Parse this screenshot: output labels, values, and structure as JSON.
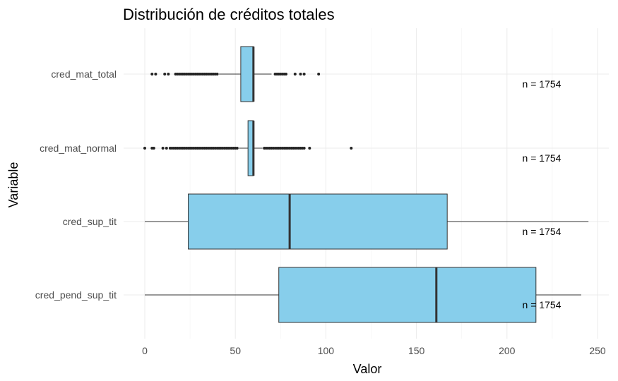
{
  "chart_data": {
    "type": "boxplot",
    "orientation": "horizontal",
    "title": "Distribución de créditos totales",
    "xlabel": "Valor",
    "ylabel": "Variable",
    "xlim": [
      -5,
      253
    ],
    "xticks": [
      0,
      50,
      100,
      150,
      200,
      250
    ],
    "grid": true,
    "legend": "none",
    "box_color": "#87CEEB",
    "series": [
      {
        "category": "cred_mat_total",
        "min": 41,
        "q1": 53,
        "median": 60,
        "q3": 60,
        "max": 70,
        "outliers": [
          4,
          6,
          11,
          13,
          17,
          18,
          19,
          20,
          21,
          22,
          23,
          24,
          25,
          26,
          27,
          28,
          29,
          30,
          31,
          32,
          33,
          34,
          35,
          36,
          37,
          38,
          39,
          40,
          72,
          73,
          74,
          75,
          76,
          77,
          78,
          83,
          86,
          88,
          96
        ],
        "annotation": "n = 1754"
      },
      {
        "category": "cred_mat_normal",
        "min": 52,
        "q1": 57,
        "median": 60,
        "q3": 60,
        "max": 65,
        "outliers": [
          0,
          4,
          5,
          10,
          12,
          14,
          15,
          16,
          17,
          18,
          19,
          20,
          21,
          22,
          23,
          24,
          25,
          26,
          27,
          28,
          29,
          30,
          31,
          32,
          33,
          34,
          35,
          36,
          37,
          38,
          39,
          40,
          41,
          42,
          43,
          44,
          45,
          46,
          47,
          48,
          49,
          50,
          51,
          66,
          67,
          68,
          69,
          70,
          71,
          72,
          73,
          74,
          75,
          76,
          77,
          78,
          79,
          80,
          81,
          82,
          83,
          84,
          85,
          86,
          87,
          88,
          91,
          114
        ],
        "annotation": "n = 1754"
      },
      {
        "category": "cred_sup_tit",
        "min": 0,
        "q1": 24,
        "median": 80,
        "q3": 167,
        "max": 245,
        "outliers": [],
        "annotation": "n = 1754"
      },
      {
        "category": "cred_pend_sup_tit",
        "min": 0,
        "q1": 74,
        "median": 161,
        "q3": 216,
        "max": 241,
        "outliers": [],
        "annotation": "n = 1754"
      }
    ]
  }
}
